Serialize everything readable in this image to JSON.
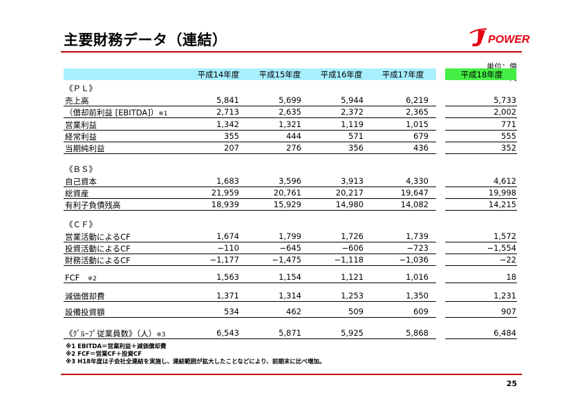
{
  "title": "主要財務データ（連結）",
  "logo_text": "POWER",
  "unit": "単位：億円",
  "columns": [
    "平成14年度",
    "平成15年度",
    "平成16年度",
    "平成17年度",
    "平成18年度"
  ],
  "sections": [
    {
      "heading": "《ＰＬ》",
      "rows": [
        {
          "label": "売上高",
          "note": "",
          "values": [
            "5,841",
            "5,699",
            "5,944",
            "6,219",
            "5,733"
          ]
        },
        {
          "label": "（償却前利益 [EBITDA]）",
          "note": "※1",
          "values": [
            "2,713",
            "2,635",
            "2,372",
            "2,365",
            "2,002"
          ]
        },
        {
          "label": "営業利益",
          "note": "",
          "values": [
            "1,342",
            "1,321",
            "1,119",
            "1,015",
            "771"
          ]
        },
        {
          "label": "経常利益",
          "note": "",
          "values": [
            "355",
            "444",
            "571",
            "679",
            "555"
          ]
        },
        {
          "label": "当期純利益",
          "note": "",
          "values": [
            "207",
            "276",
            "356",
            "436",
            "352"
          ]
        }
      ]
    },
    {
      "heading": "《ＢＳ》",
      "rows": [
        {
          "label": "自己資本",
          "note": "",
          "values": [
            "1,683",
            "3,596",
            "3,913",
            "4,330",
            "4,612"
          ]
        },
        {
          "label": "総資産",
          "note": "",
          "values": [
            "21,959",
            "20,761",
            "20,217",
            "19,647",
            "19,998"
          ]
        },
        {
          "label": "有利子負債残高",
          "note": "",
          "values": [
            "18,939",
            "15,929",
            "14,980",
            "14,082",
            "14,215"
          ]
        }
      ]
    },
    {
      "heading": "《ＣＦ》",
      "rows": [
        {
          "label": "営業活動によるCF",
          "note": "",
          "values": [
            "1,674",
            "1,799",
            "1,726",
            "1,739",
            "1,572"
          ]
        },
        {
          "label": "投資活動によるCF",
          "note": "",
          "values": [
            "−110",
            "−645",
            "−606",
            "−723",
            "−1,554"
          ]
        },
        {
          "label": "財務活動によるCF",
          "note": "",
          "values": [
            "−1,177",
            "−1,475",
            "−1,118",
            "−1,036",
            "−22"
          ]
        }
      ]
    },
    {
      "heading": "",
      "rows": [
        {
          "label": "FCF　",
          "note": "※2",
          "values": [
            "1,563",
            "1,154",
            "1,121",
            "1,016",
            "18"
          ]
        }
      ]
    },
    {
      "heading": "",
      "rows": [
        {
          "label": "減価償却費",
          "note": "",
          "values": [
            "1,371",
            "1,314",
            "1,253",
            "1,350",
            "1,231"
          ]
        }
      ]
    },
    {
      "heading": "",
      "rows": [
        {
          "label": "設備投資額",
          "note": "",
          "values": [
            "534",
            "462",
            "509",
            "609",
            "907"
          ]
        }
      ]
    },
    {
      "heading": "",
      "rows": [
        {
          "label": "《ｸﾞﾙｰﾌﾟ従業員数》（人）",
          "note": "※3",
          "values": [
            "6,543",
            "5,871",
            "5,925",
            "5,868",
            "6,484"
          ]
        }
      ]
    }
  ],
  "footnotes": [
    "※1 EBITDA＝営業利益＋減価償却費",
    "※2 FCF＝営業CF＋投資CF",
    "※3 H18年度は子会社全連結を実施し、連結範囲が拡大したことなどにより、前期末に比べ増加。"
  ],
  "page_number": "25",
  "colors": {
    "accent_red": "#c00000",
    "header_cyan": "#a8f0ff",
    "header_green": "#44ee44",
    "logo_red": "#e60012"
  }
}
